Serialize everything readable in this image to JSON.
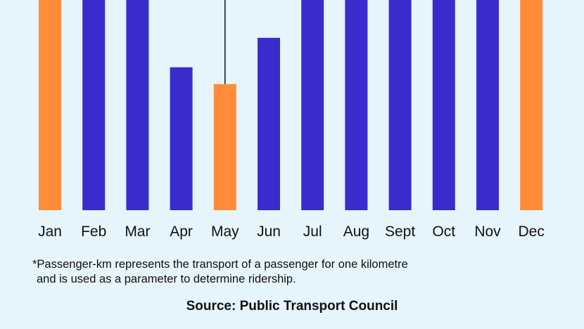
{
  "chart_data": {
    "type": "bar",
    "categories": [
      "Jan",
      "Feb",
      "Mar",
      "Apr",
      "May",
      "Jun",
      "Jul",
      "Aug",
      "Sept",
      "Oct",
      "Nov",
      "Dec"
    ],
    "values": [
      1.0,
      1.0,
      1.0,
      0.68,
      0.6,
      0.82,
      1.0,
      1.0,
      1.0,
      1.0,
      1.0,
      1.0
    ],
    "highlighted": [
      "Jan",
      "May",
      "Dec"
    ],
    "ylim": [
      0,
      1
    ],
    "marker_line_category": "May",
    "grid": false,
    "colors": {
      "bar": "#3a2ccc",
      "highlight": "#ff8c3a",
      "marker_line": "#111111"
    }
  },
  "footnote": {
    "line1": "*Passenger-km represents the transport of a passenger for one kilometre",
    "line2": "and is used as a parameter to determine ridership."
  },
  "source": "Source: Public Transport Council"
}
